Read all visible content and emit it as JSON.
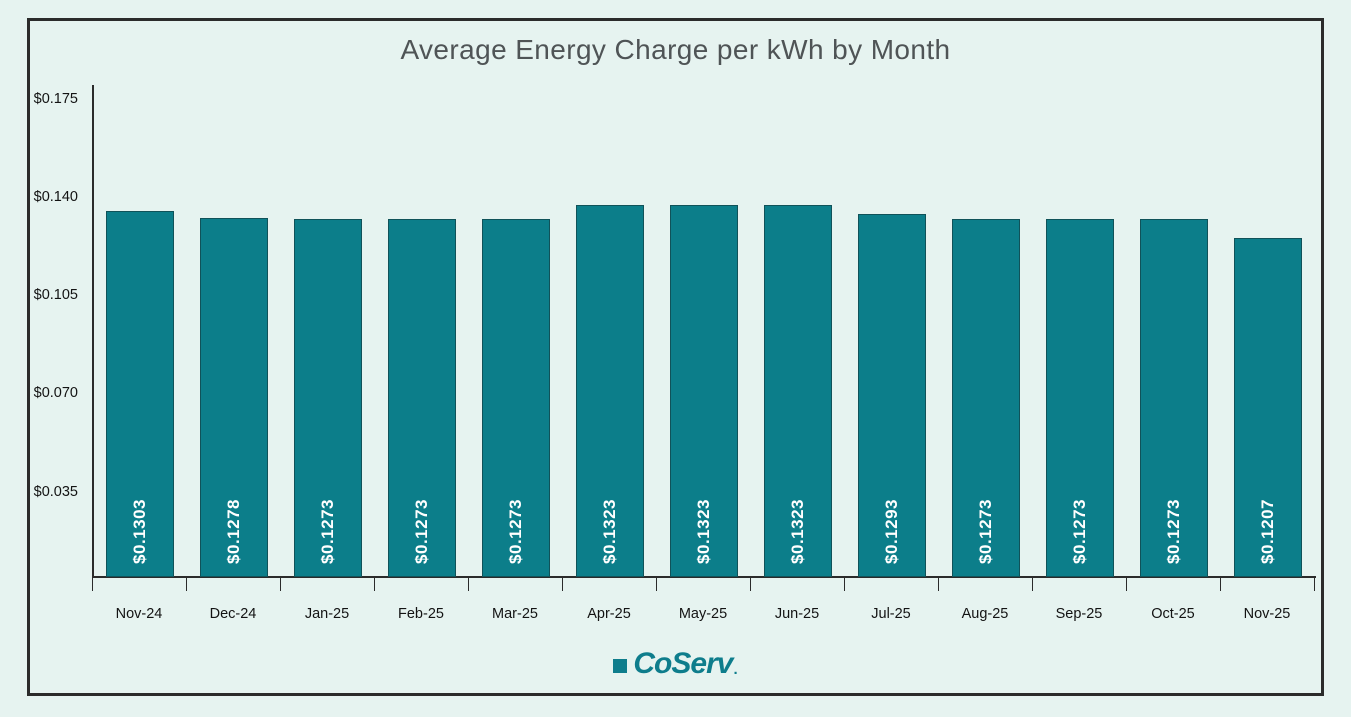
{
  "chart_data": {
    "type": "bar",
    "title": "Average Energy Charge per kWh by Month",
    "categories": [
      "Nov-24",
      "Dec-24",
      "Jan-25",
      "Feb-25",
      "Mar-25",
      "Apr-25",
      "May-25",
      "Jun-25",
      "Jul-25",
      "Aug-25",
      "Sep-25",
      "Oct-25",
      "Nov-25"
    ],
    "values": [
      0.1303,
      0.1278,
      0.1273,
      0.1273,
      0.1273,
      0.1323,
      0.1323,
      0.1323,
      0.1293,
      0.1273,
      0.1273,
      0.1273,
      0.1207
    ],
    "bar_labels": [
      "$0.1303",
      "$0.1278",
      "$0.1273",
      "$0.1273",
      "$0.1273",
      "$0.1323",
      "$0.1323",
      "$0.1323",
      "$0.1293",
      "$0.1273",
      "$0.1273",
      "$0.1273",
      "$0.1207"
    ],
    "y_ticks": [
      0.035,
      0.07,
      0.105,
      0.14,
      0.175
    ],
    "y_tick_labels": [
      "$0.035",
      "$0.070",
      "$0.105",
      "$0.140",
      "$0.175"
    ],
    "ylim": [
      0,
      0.175
    ],
    "xlabel": "",
    "ylabel": "",
    "grid": "off",
    "legend": "none",
    "colors": {
      "bar": "#0c7e8a",
      "bar_label": "#ffffff",
      "axis": "#2b2b2b",
      "background": "#e6f3f0",
      "title": "#4f5456",
      "logo": "#0e7d8c"
    }
  },
  "footer": {
    "logo_text": "CoServ",
    "logo_mark": "."
  }
}
